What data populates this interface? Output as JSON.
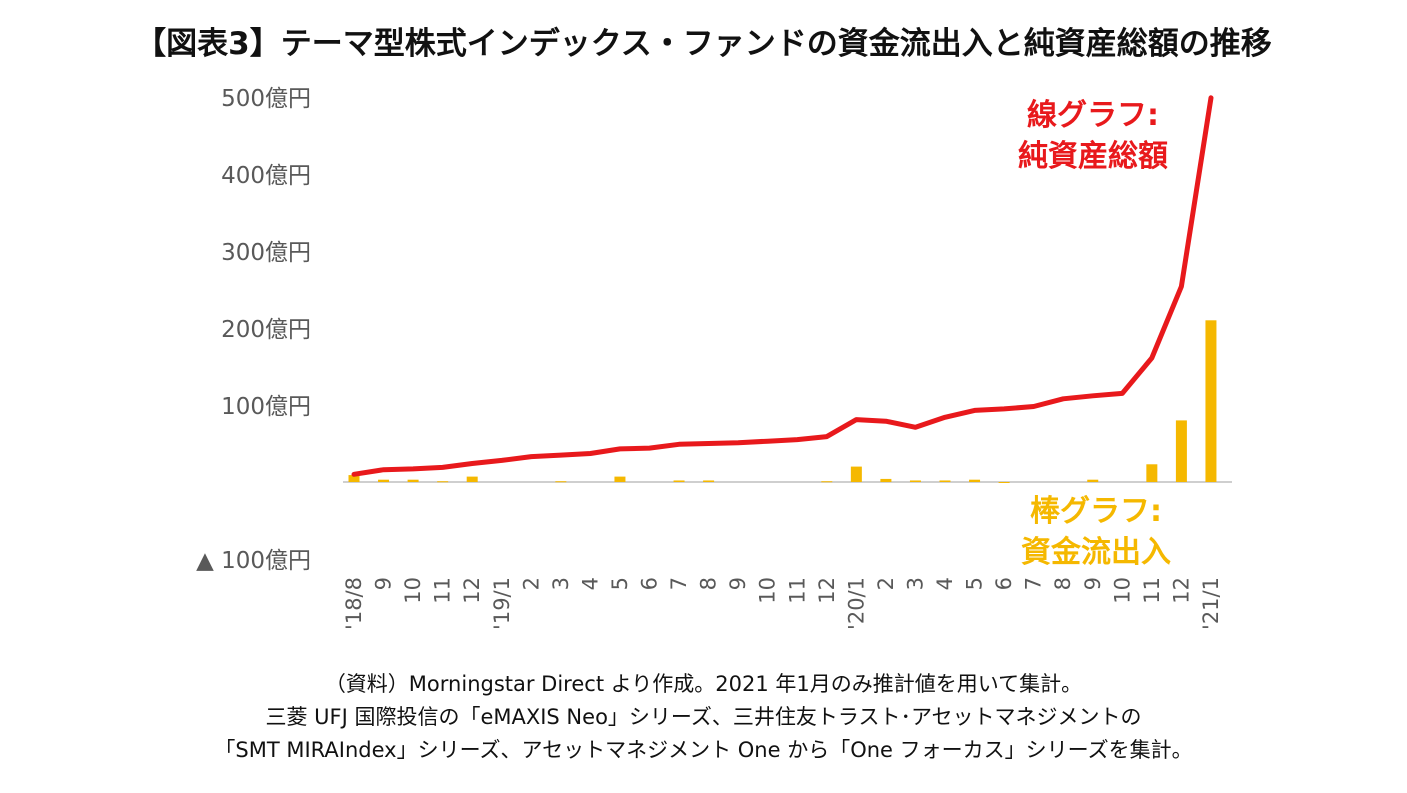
{
  "title": "【図表3】テーマ型株式インデックス・ファンドの資金流出入と純資産総額の推移",
  "chart_data": {
    "type": "bar+line",
    "categories": [
      "'18/8",
      "9",
      "10",
      "11",
      "12",
      "'19/1",
      "2",
      "3",
      "4",
      "5",
      "6",
      "7",
      "8",
      "9",
      "10",
      "11",
      "12",
      "'20/1",
      "2",
      "3",
      "4",
      "5",
      "6",
      "7",
      "8",
      "9",
      "10",
      "11",
      "12",
      "'21/1"
    ],
    "y_ticks": [
      {
        "value": 500,
        "label": "500億円"
      },
      {
        "value": 400,
        "label": "400億円"
      },
      {
        "value": 300,
        "label": "300億円"
      },
      {
        "value": 200,
        "label": "200億円"
      },
      {
        "value": 100,
        "label": "100億円"
      },
      {
        "value": -100,
        "label": "▲ 100億円"
      }
    ],
    "ylim": [
      -100,
      500
    ],
    "series": [
      {
        "name": "資金流出入",
        "type": "bar",
        "color": "#F5B800",
        "values": [
          9,
          3,
          3,
          1,
          7,
          0,
          0,
          1,
          0,
          7,
          0,
          2,
          2,
          0,
          0,
          0,
          1,
          20,
          4,
          2,
          2,
          3,
          -1,
          0,
          0,
          3,
          0,
          23,
          80,
          210
        ]
      },
      {
        "name": "純資産総額",
        "type": "line",
        "color": "#E8191C",
        "values": [
          10,
          16,
          17,
          19,
          24,
          28,
          33,
          35,
          37,
          43,
          44,
          49,
          50,
          51,
          53,
          55,
          59,
          81,
          79,
          71,
          84,
          93,
          95,
          98,
          108,
          112,
          115,
          161,
          254,
          499
        ]
      }
    ],
    "annotations": [
      {
        "lines": [
          "線グラフ:",
          "純資産総額"
        ],
        "color": "#E8191C"
      },
      {
        "lines": [
          "棒グラフ:",
          "資金流出入"
        ],
        "color": "#F5B800"
      }
    ]
  },
  "notes": [
    "（資料）Morningstar Direct より作成。2021 年1月のみ推計値を用いて集計。",
    "三菱 UFJ 国際投信の「eMAXIS Neo」シリーズ、三井住友トラスト･アセットマネジメントの",
    "「SMT MIRAIndex」シリーズ、アセットマネジメント One から「One フォーカス」シリーズを集計。"
  ]
}
